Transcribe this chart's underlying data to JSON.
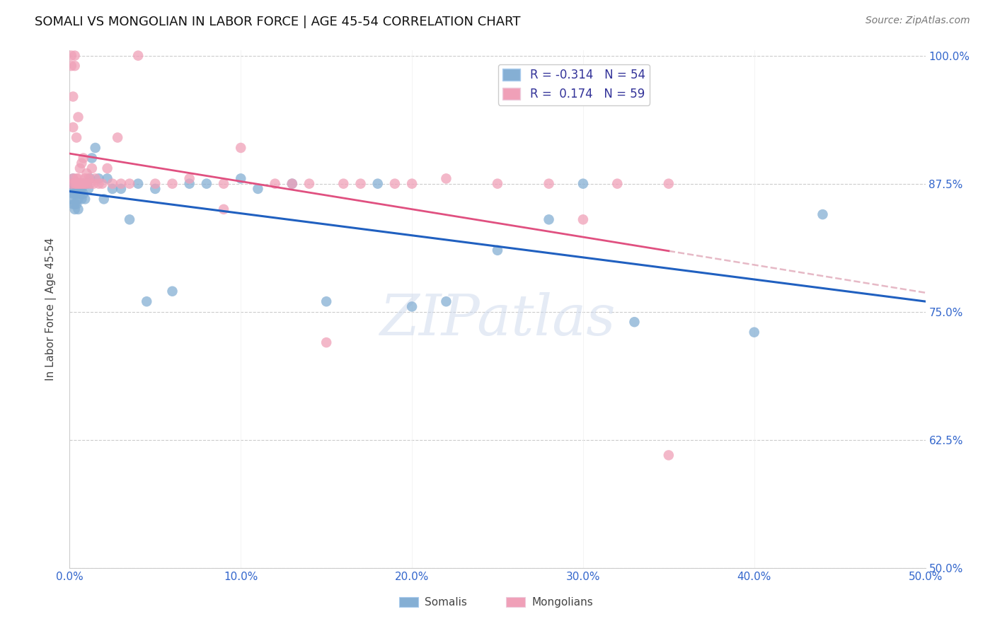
{
  "title": "SOMALI VS MONGOLIAN IN LABOR FORCE | AGE 45-54 CORRELATION CHART",
  "source": "Source: ZipAtlas.com",
  "ylabel": "In Labor Force | Age 45-54",
  "xlim": [
    0.0,
    0.5
  ],
  "ylim": [
    0.5,
    1.005
  ],
  "xticks": [
    0.0,
    0.1,
    0.2,
    0.3,
    0.4,
    0.5
  ],
  "yticks": [
    0.5,
    0.625,
    0.75,
    0.875,
    1.0
  ],
  "xticklabels": [
    "0.0%",
    "10.0%",
    "20.0%",
    "30.0%",
    "40.0%",
    "50.0%"
  ],
  "yticklabels": [
    "50.0%",
    "62.5%",
    "75.0%",
    "87.5%",
    "100.0%"
  ],
  "somali_color": "#85afd4",
  "mongolian_color": "#f0a0b8",
  "somali_R": -0.314,
  "somali_N": 54,
  "mongolian_R": 0.174,
  "mongolian_N": 59,
  "somali_line_color": "#2060c0",
  "mongolian_line_color": "#e05080",
  "mongolian_dash_color": "#e0a8b8",
  "somali_x": [
    0.001,
    0.001,
    0.001,
    0.002,
    0.002,
    0.002,
    0.002,
    0.003,
    0.003,
    0.003,
    0.003,
    0.004,
    0.004,
    0.004,
    0.005,
    0.005,
    0.005,
    0.006,
    0.006,
    0.007,
    0.007,
    0.008,
    0.008,
    0.009,
    0.01,
    0.011,
    0.012,
    0.013,
    0.015,
    0.017,
    0.02,
    0.022,
    0.025,
    0.03,
    0.035,
    0.04,
    0.045,
    0.05,
    0.06,
    0.07,
    0.08,
    0.1,
    0.11,
    0.13,
    0.15,
    0.18,
    0.2,
    0.22,
    0.25,
    0.28,
    0.3,
    0.33,
    0.4,
    0.44
  ],
  "somali_y": [
    0.87,
    0.86,
    0.875,
    0.88,
    0.87,
    0.855,
    0.865,
    0.875,
    0.865,
    0.855,
    0.85,
    0.875,
    0.865,
    0.855,
    0.87,
    0.86,
    0.85,
    0.875,
    0.865,
    0.87,
    0.86,
    0.875,
    0.865,
    0.86,
    0.875,
    0.87,
    0.88,
    0.9,
    0.91,
    0.88,
    0.86,
    0.88,
    0.87,
    0.87,
    0.84,
    0.875,
    0.76,
    0.87,
    0.77,
    0.875,
    0.875,
    0.88,
    0.87,
    0.875,
    0.76,
    0.875,
    0.755,
    0.76,
    0.81,
    0.84,
    0.875,
    0.74,
    0.73,
    0.845
  ],
  "mongolian_x": [
    0.001,
    0.001,
    0.001,
    0.002,
    0.002,
    0.002,
    0.003,
    0.003,
    0.003,
    0.004,
    0.004,
    0.004,
    0.005,
    0.005,
    0.005,
    0.006,
    0.006,
    0.007,
    0.007,
    0.008,
    0.008,
    0.009,
    0.009,
    0.01,
    0.01,
    0.011,
    0.012,
    0.013,
    0.014,
    0.015,
    0.017,
    0.019,
    0.022,
    0.025,
    0.028,
    0.03,
    0.035,
    0.04,
    0.05,
    0.06,
    0.07,
    0.09,
    0.1,
    0.12,
    0.14,
    0.16,
    0.19,
    0.22,
    0.25,
    0.28,
    0.3,
    0.32,
    0.35,
    0.15,
    0.17,
    0.2,
    0.09,
    0.13,
    0.35
  ],
  "mongolian_y": [
    0.875,
    0.99,
    1.0,
    0.88,
    0.96,
    0.93,
    0.875,
    0.99,
    1.0,
    0.88,
    0.92,
    0.875,
    0.88,
    0.94,
    0.875,
    0.89,
    0.875,
    0.895,
    0.875,
    0.9,
    0.875,
    0.88,
    0.875,
    0.885,
    0.875,
    0.88,
    0.875,
    0.89,
    0.875,
    0.88,
    0.875,
    0.875,
    0.89,
    0.875,
    0.92,
    0.875,
    0.875,
    1.0,
    0.875,
    0.875,
    0.88,
    0.875,
    0.91,
    0.875,
    0.875,
    0.875,
    0.875,
    0.88,
    0.875,
    0.875,
    0.84,
    0.875,
    0.875,
    0.72,
    0.875,
    0.875,
    0.85,
    0.875,
    0.61
  ]
}
